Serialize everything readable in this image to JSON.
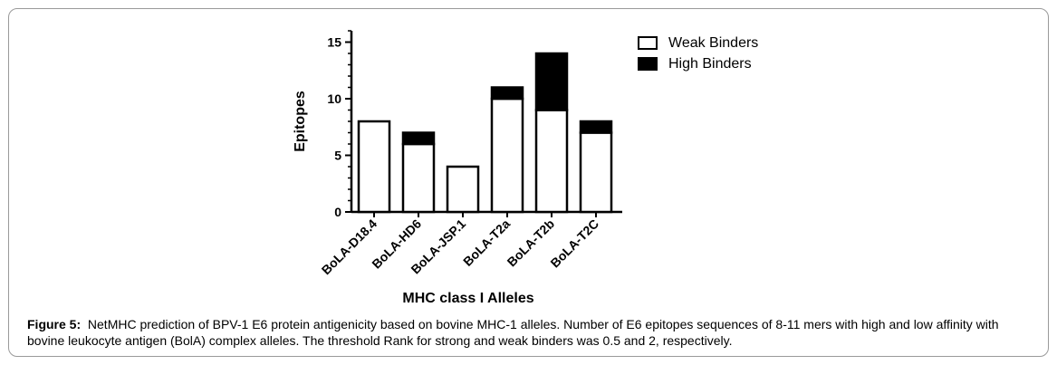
{
  "caption": {
    "label": "Figure 5:",
    "text": "NetMHC prediction of BPV-1 E6 protein antigenicity based on bovine MHC-1 alleles. Number of E6 epitopes sequences of 8-11 mers with high and low affinity with bovine leukocyte antigen (BolA) complex alleles. The threshold Rank for strong and weak binders was 0.5 and 2, respectively."
  },
  "chart_data": {
    "type": "bar",
    "stacked": true,
    "title": "",
    "xlabel": "MHC class I Alleles",
    "ylabel": "Epitopes",
    "ylim": [
      0,
      16
    ],
    "yticks": [
      0,
      5,
      10,
      15
    ],
    "categories": [
      "BoLA-D18.4",
      "BoLA-HD6",
      "BoLA-JSP.1",
      "BoLA-T2a",
      "BoLA-T2b",
      "BoLA-T2C"
    ],
    "series": [
      {
        "name": "Weak Binders",
        "values": [
          8,
          6,
          4,
          10,
          9,
          7
        ],
        "color": "#ffffff"
      },
      {
        "name": "High Binders",
        "values": [
          0,
          1,
          0,
          1,
          5,
          1
        ],
        "color": "#000000"
      }
    ],
    "legend_position": "top-right",
    "grid": false
  }
}
